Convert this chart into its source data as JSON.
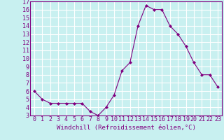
{
  "x": [
    0,
    1,
    2,
    3,
    4,
    5,
    6,
    7,
    8,
    9,
    10,
    11,
    12,
    13,
    14,
    15,
    16,
    17,
    18,
    19,
    20,
    21,
    22,
    23
  ],
  "y": [
    6.0,
    5.0,
    4.5,
    4.5,
    4.5,
    4.5,
    4.5,
    3.5,
    3.0,
    4.0,
    5.5,
    8.5,
    9.5,
    14.0,
    16.5,
    16.0,
    16.0,
    14.0,
    13.0,
    11.5,
    9.5,
    8.0,
    8.0,
    6.5
  ],
  "line_color": "#800080",
  "marker": "D",
  "marker_size": 2,
  "bg_color": "#c8f0f0",
  "grid_color": "#ffffff",
  "xlabel": "Windchill (Refroidissement éolien,°C)",
  "xlabel_fontsize": 6.5,
  "ylim": [
    3,
    17
  ],
  "xlim": [
    -0.5,
    23.5
  ],
  "yticks": [
    3,
    4,
    5,
    6,
    7,
    8,
    9,
    10,
    11,
    12,
    13,
    14,
    15,
    16,
    17
  ],
  "xticks": [
    0,
    1,
    2,
    3,
    4,
    5,
    6,
    7,
    8,
    9,
    10,
    11,
    12,
    13,
    14,
    15,
    16,
    17,
    18,
    19,
    20,
    21,
    22,
    23
  ],
  "tick_fontsize": 6,
  "tick_color": "#800080",
  "label_color": "#800080",
  "spine_color": "#800080"
}
